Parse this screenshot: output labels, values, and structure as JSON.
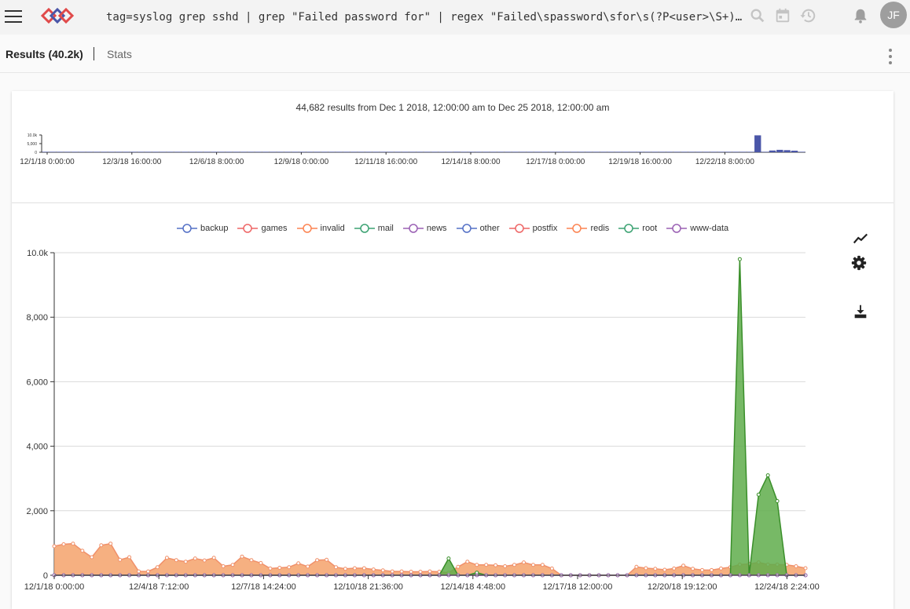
{
  "header": {
    "query": "tag=syslog grep sshd | grep \"Failed password for\" | regex \"Failed\\spassword\\sfor\\s(?P<user>\\S+)\\sfrom\\s(?P<ip>\\S+)\" | count by user | chart count by user",
    "avatar_initials": "JF",
    "icons": [
      "menu-icon",
      "logo-icon",
      "search-icon",
      "calendar-icon",
      "history-icon",
      "bell-icon"
    ]
  },
  "tabs": {
    "results_label": "Results (40.2k)",
    "stats_label": "Stats"
  },
  "overview": {
    "summary": "44,682 results from Dec 1 2018, 12:00:00 am to Dec 25 2018, 12:00:00 am",
    "y_ticks": [
      "10.0k",
      "5,000",
      "0"
    ],
    "x_ticks": [
      "12/1/18 0:00:00",
      "12/3/18 16:00:00",
      "12/6/18 8:00:00",
      "12/9/18 0:00:00",
      "12/11/18 16:00:00",
      "12/14/18 8:00:00",
      "12/17/18 0:00:00",
      "12/19/18 16:00:00",
      "12/22/18 8:00:00"
    ],
    "bar_color": "#4a56a8",
    "values": [
      90,
      120,
      80,
      60,
      40,
      150,
      120,
      90,
      100,
      60,
      30,
      40,
      60,
      30,
      20,
      50,
      40,
      60,
      80,
      70,
      60,
      50,
      40,
      40,
      50,
      40,
      30,
      60,
      50,
      40,
      30,
      30,
      20,
      40,
      60,
      60,
      50,
      40,
      30,
      30,
      20,
      30,
      30,
      40,
      30,
      20,
      30,
      30,
      40,
      30,
      40,
      20,
      30,
      30,
      20,
      30,
      300,
      60,
      30,
      70,
      80,
      40,
      50,
      50,
      30,
      20,
      40,
      50,
      60,
      30,
      30,
      20,
      40,
      40,
      20,
      20,
      10,
      10,
      10,
      10,
      10,
      10,
      10,
      30,
      30,
      20,
      20,
      20,
      30,
      30,
      20,
      30,
      20,
      30,
      20,
      20,
      40,
      9800,
      200,
      1000,
      1400,
      1200,
      900,
      30
    ]
  },
  "toolbar": {
    "icons": [
      "chart-line-icon",
      "gear-icon",
      "download-icon"
    ]
  },
  "chart_data": {
    "type": "area",
    "ylim": [
      0,
      10000
    ],
    "y_ticks": [
      "0",
      "2,000",
      "4,000",
      "6,000",
      "8,000",
      "10.0k"
    ],
    "x_ticks": [
      "12/1/18 0:00:00",
      "12/4/18 7:12:00",
      "12/7/18 14:24:00",
      "12/10/18 21:36:00",
      "12/14/18 4:48:00",
      "12/17/18 12:00:00",
      "12/20/18 19:12:00",
      "12/24/18 2:24:00"
    ],
    "legend": [
      {
        "name": "backup",
        "color": "#5470c6"
      },
      {
        "name": "games",
        "color": "#ee6666"
      },
      {
        "name": "invalid",
        "color": "#fc8452"
      },
      {
        "name": "mail",
        "color": "#3ba272"
      },
      {
        "name": "news",
        "color": "#9a60b4"
      },
      {
        "name": "other",
        "color": "#5470c6"
      },
      {
        "name": "postfix",
        "color": "#ee6666"
      },
      {
        "name": "redis",
        "color": "#fc8452"
      },
      {
        "name": "root",
        "color": "#3ba272"
      },
      {
        "name": "www-data",
        "color": "#9a60b4"
      }
    ],
    "series": [
      {
        "name": "invalid",
        "color": "#f4a26b",
        "stroke": "#f0906a",
        "values": [
          900,
          960,
          980,
          760,
          560,
          930,
          980,
          480,
          560,
          120,
          120,
          250,
          540,
          470,
          420,
          520,
          460,
          540,
          280,
          320,
          580,
          470,
          380,
          210,
          230,
          250,
          370,
          270,
          470,
          480,
          250,
          200,
          220,
          220,
          180,
          150,
          120,
          120,
          110,
          110,
          120,
          110,
          80,
          260,
          420,
          320,
          320,
          310,
          280,
          320,
          400,
          320,
          320,
          210,
          0,
          0,
          0,
          0,
          0,
          0,
          0,
          0,
          260,
          220,
          200,
          170,
          210,
          300,
          200,
          160,
          160,
          210,
          250,
          330,
          350,
          400,
          330,
          330,
          320,
          280,
          220
        ]
      },
      {
        "name": "root",
        "color": "#5fad4b",
        "stroke": "#3a8f2a",
        "values": [
          0,
          0,
          0,
          0,
          0,
          0,
          0,
          0,
          0,
          0,
          0,
          0,
          0,
          0,
          0,
          0,
          0,
          0,
          0,
          0,
          0,
          0,
          0,
          0,
          0,
          0,
          0,
          0,
          0,
          0,
          0,
          0,
          0,
          0,
          0,
          0,
          0,
          0,
          0,
          0,
          0,
          0,
          520,
          0,
          0,
          80,
          0,
          0,
          0,
          0,
          0,
          0,
          0,
          0,
          0,
          0,
          0,
          0,
          0,
          0,
          0,
          0,
          0,
          0,
          0,
          0,
          0,
          0,
          0,
          0,
          0,
          0,
          0,
          9800,
          0,
          2500,
          3100,
          2300,
          0,
          0,
          0
        ]
      },
      {
        "name": "www-data",
        "color": "#9a60b4",
        "stroke": "#9a60b4",
        "values": [
          0,
          0,
          0,
          0,
          0,
          0,
          0,
          0,
          0,
          0,
          0,
          0,
          0,
          0,
          0,
          0,
          0,
          0,
          0,
          0,
          0,
          0,
          0,
          0,
          0,
          0,
          0,
          0,
          0,
          0,
          0,
          0,
          0,
          0,
          0,
          0,
          0,
          0,
          0,
          0,
          0,
          0,
          0,
          0,
          0,
          0,
          0,
          0,
          0,
          0,
          0,
          0,
          0,
          0,
          0,
          0,
          0,
          0,
          0,
          0,
          0,
          0,
          0,
          0,
          0,
          0,
          0,
          0,
          0,
          0,
          0,
          0,
          0,
          0,
          0,
          0,
          0,
          0,
          0,
          0,
          0
        ]
      }
    ]
  }
}
